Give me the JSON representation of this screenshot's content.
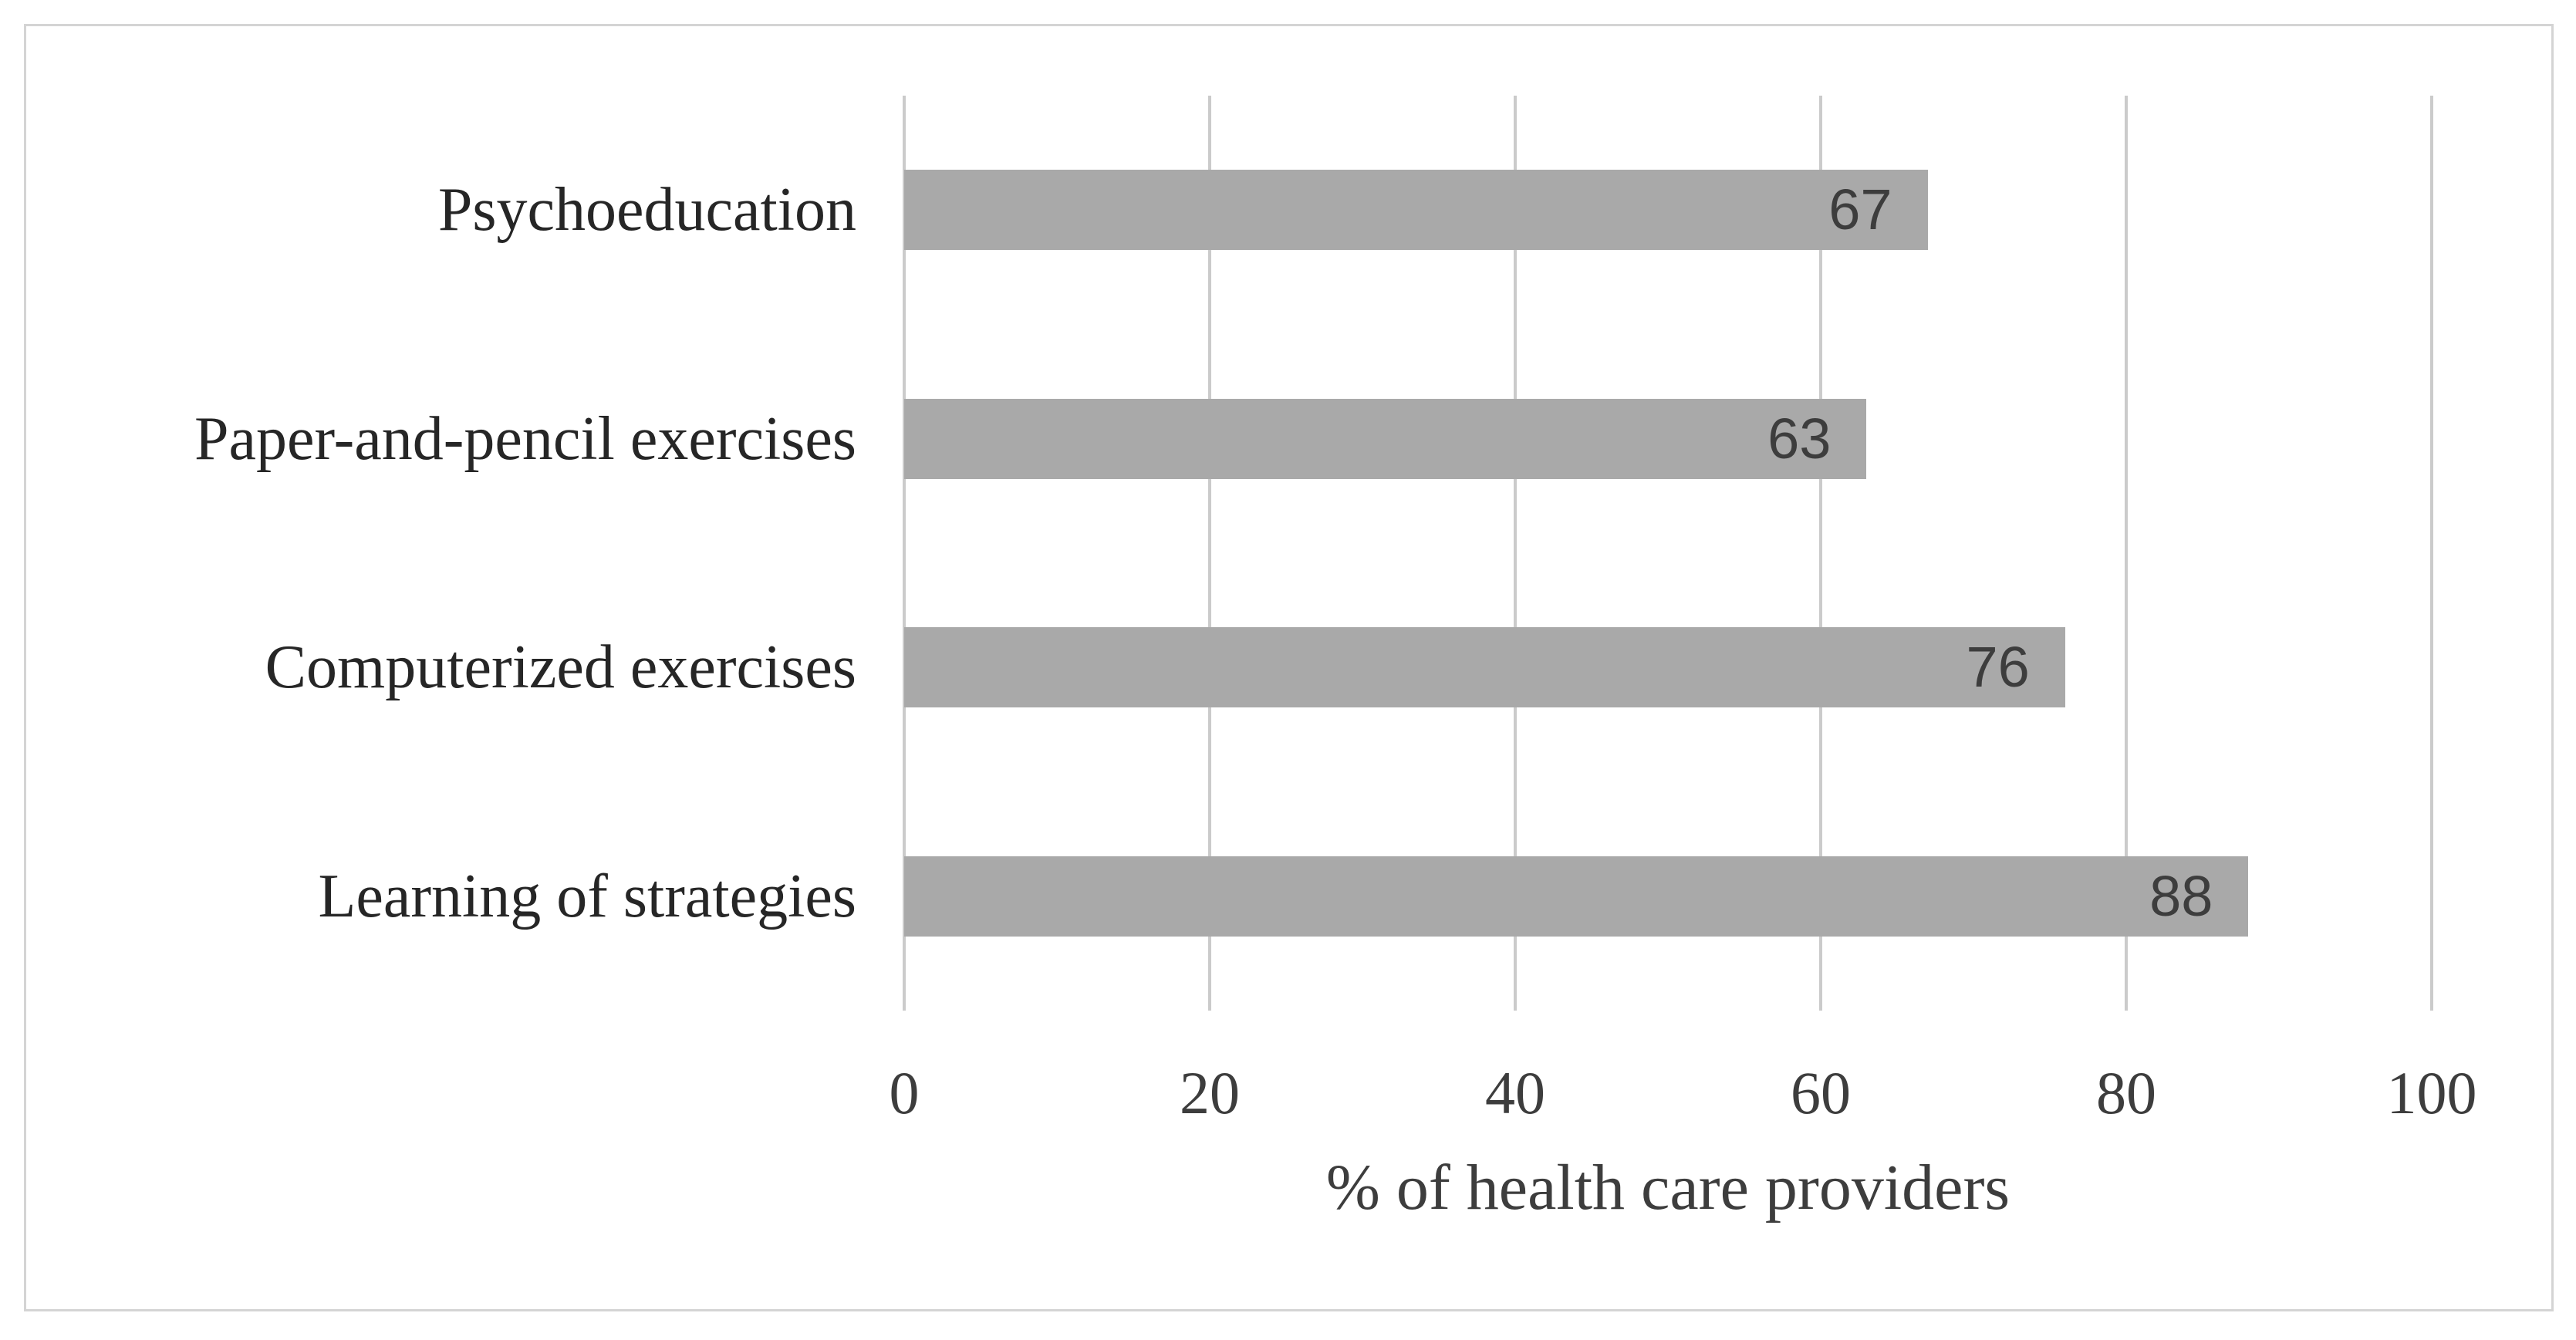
{
  "chart_data": {
    "type": "bar",
    "orientation": "horizontal",
    "categories": [
      "Psychoeducation",
      "Paper-and-pencil exercises",
      "Computerized exercises",
      "Learning of strategies"
    ],
    "values": [
      67,
      63,
      76,
      88
    ],
    "data_labels": [
      "67",
      "63",
      "76",
      "88"
    ],
    "title": "",
    "xlabel": "% of health care providers",
    "ylabel": "",
    "xlim": [
      0,
      100
    ],
    "xticks": [
      0,
      20,
      40,
      60,
      80,
      100
    ],
    "xtick_labels": [
      "0",
      "20",
      "40",
      "60",
      "80",
      "100"
    ],
    "grid": "vertical-gridlines-on",
    "legend": "none",
    "colors": {
      "bar_fill": "#a9a9a9",
      "gridline": "#cbcbcb",
      "frame_border": "#d4d4d4",
      "category_text": "#262626",
      "tick_text": "#3d3d3d",
      "data_label_text": "#3d3d3d",
      "background": "#ffffff"
    }
  }
}
